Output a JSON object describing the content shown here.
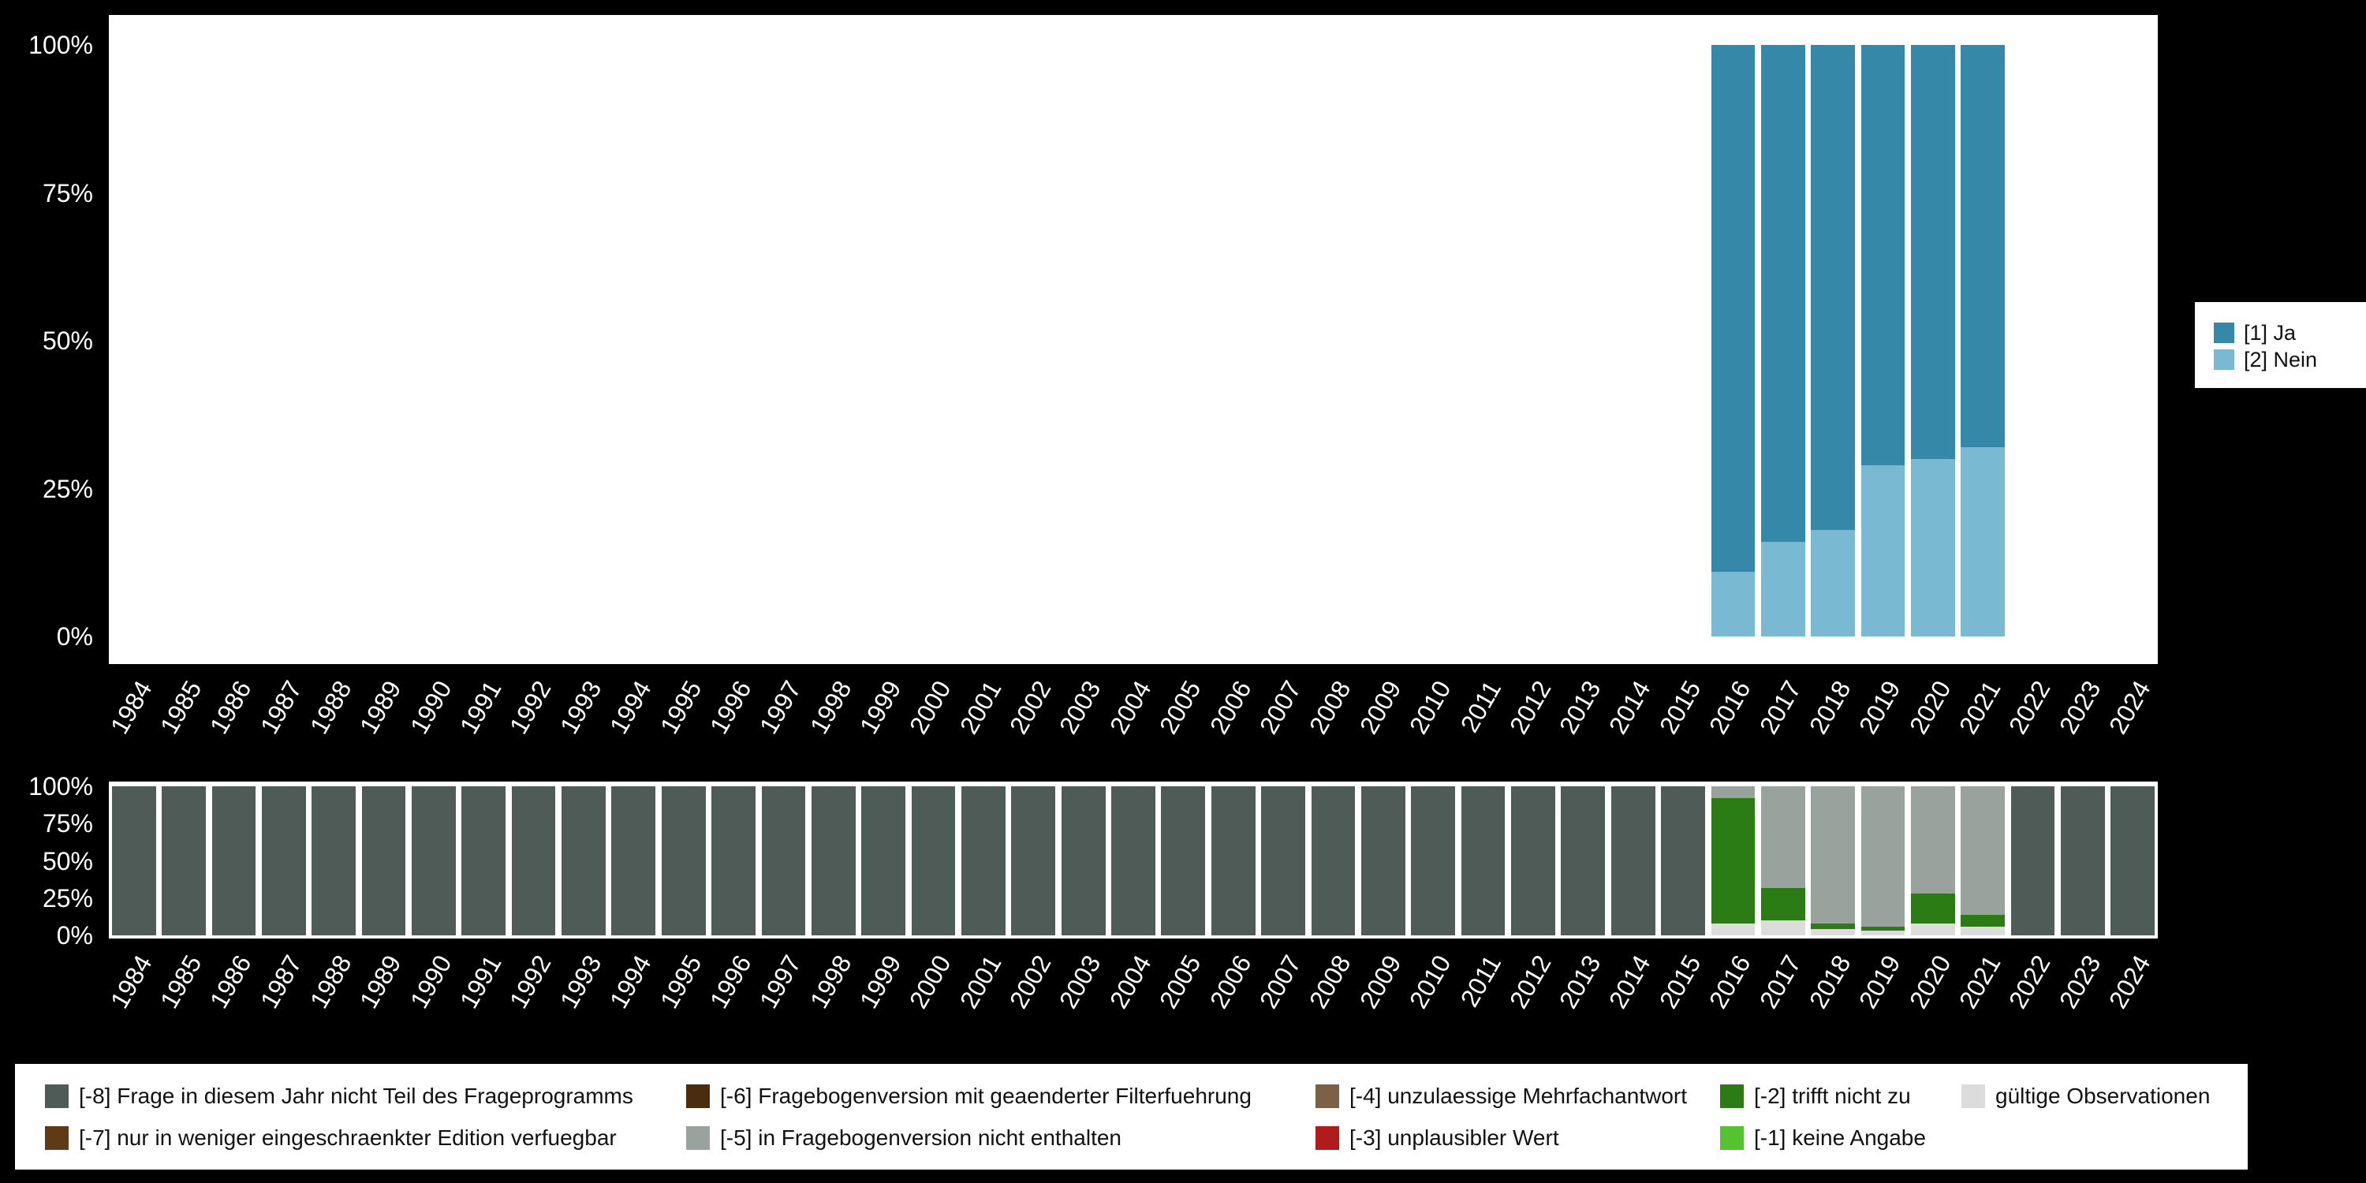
{
  "colors": {
    "background": "#000000",
    "panel": "#ffffff",
    "axis_text": "#ffffff",
    "legend_text": "#111111",
    "ja": "#3688a9",
    "nein": "#79b9d1",
    "neg8": "#4e5b57",
    "neg7": "#5e3a17",
    "neg6": "#4a2d0e",
    "neg5": "#99a29d",
    "neg4": "#7c6147",
    "neg3": "#b01c1c",
    "neg2": "#2c7c16",
    "neg1": "#54c32f",
    "valid": "#dcdcdc"
  },
  "top_legend": {
    "items": [
      {
        "label": "[1] Ja",
        "color": "#3688a9"
      },
      {
        "label": "[2] Nein",
        "color": "#79b9d1"
      }
    ]
  },
  "bottom_legend": {
    "items": [
      {
        "label": "[-8] Frage in diesem Jahr nicht Teil des Frageprogramms",
        "color": "#4e5b57"
      },
      {
        "label": "[-6] Fragebogenversion mit geaenderter Filterfuehrung",
        "color": "#4a2d0e"
      },
      {
        "label": "[-4] unzulaessige Mehrfachantwort",
        "color": "#7c6147"
      },
      {
        "label": "[-2] trifft nicht zu",
        "color": "#2c7c16"
      },
      {
        "label": "gültige Observationen",
        "color": "#dcdcdc"
      },
      {
        "label": "[-7] nur in weniger eingeschraenkter Edition verfuegbar",
        "color": "#5e3a17"
      },
      {
        "label": "[-5] in Fragebogenversion nicht enthalten",
        "color": "#99a29d"
      },
      {
        "label": "[-3] unplausibler Wert",
        "color": "#b01c1c"
      },
      {
        "label": "[-1] keine Angabe",
        "color": "#54c32f"
      }
    ]
  },
  "chart_data": [
    {
      "id": "answer-distribution",
      "type": "bar",
      "stacked": true,
      "orientation": "vertical",
      "categories": [
        "1984",
        "1985",
        "1986",
        "1987",
        "1988",
        "1989",
        "1990",
        "1991",
        "1992",
        "1993",
        "1994",
        "1995",
        "1996",
        "1997",
        "1998",
        "1999",
        "2000",
        "2001",
        "2002",
        "2003",
        "2004",
        "2005",
        "2006",
        "2007",
        "2008",
        "2009",
        "2010",
        "2011",
        "2012",
        "2013",
        "2014",
        "2015",
        "2016",
        "2017",
        "2018",
        "2019",
        "2020",
        "2021",
        "2022",
        "2023",
        "2024"
      ],
      "ylim": [
        0,
        100
      ],
      "yticks": [
        0,
        25,
        50,
        75,
        100
      ],
      "ytick_labels": [
        "0%",
        "25%",
        "50%",
        "75%",
        "100%"
      ],
      "legend_position": "right",
      "legend_labels": [
        "[1] Ja",
        "[2] Nein"
      ],
      "series": [
        {
          "name": "[2] Nein",
          "color": "#79b9d1",
          "values_by_year": {
            "2016": 11,
            "2017": 16,
            "2018": 18,
            "2019": 29,
            "2020": 30,
            "2021": 32
          }
        },
        {
          "name": "[1] Ja",
          "color": "#3688a9",
          "values_by_year": {
            "2016": 89,
            "2017": 84,
            "2018": 82,
            "2019": 71,
            "2020": 70,
            "2021": 68
          }
        }
      ]
    },
    {
      "id": "missing-values-distribution",
      "type": "bar",
      "stacked": true,
      "orientation": "vertical",
      "categories": [
        "1984",
        "1985",
        "1986",
        "1987",
        "1988",
        "1989",
        "1990",
        "1991",
        "1992",
        "1993",
        "1994",
        "1995",
        "1996",
        "1997",
        "1998",
        "1999",
        "2000",
        "2001",
        "2002",
        "2003",
        "2004",
        "2005",
        "2006",
        "2007",
        "2008",
        "2009",
        "2010",
        "2011",
        "2012",
        "2013",
        "2014",
        "2015",
        "2016",
        "2017",
        "2018",
        "2019",
        "2020",
        "2021",
        "2022",
        "2023",
        "2024"
      ],
      "ylim": [
        0,
        100
      ],
      "yticks": [
        0,
        25,
        50,
        75,
        100
      ],
      "ytick_labels": [
        "0%",
        "25%",
        "50%",
        "75%",
        "100%"
      ],
      "legend_position": "bottom",
      "series": [
        {
          "name": "gültige Observationen",
          "color": "#dcdcdc",
          "values_by_year": {
            "2016": 8,
            "2017": 10,
            "2018": 4,
            "2019": 3,
            "2020": 8,
            "2021": 6
          }
        },
        {
          "name": "[-2] trifft nicht zu",
          "color": "#2c7c16",
          "values_by_year": {
            "2016": 84,
            "2017": 22,
            "2018": 4,
            "2019": 3,
            "2020": 20,
            "2021": 8
          }
        },
        {
          "name": "[-5] in Fragebogenversion nicht enthalten",
          "color": "#99a29d",
          "values_by_year": {
            "2016": 8,
            "2017": 68,
            "2018": 92,
            "2019": 94,
            "2020": 72,
            "2021": 86
          }
        },
        {
          "name": "[-8] Frage in diesem Jahr nicht Teil des Frageprogramms",
          "color": "#4e5b57",
          "values_by_year": {
            "1984": 100,
            "1985": 100,
            "1986": 100,
            "1987": 100,
            "1988": 100,
            "1989": 100,
            "1990": 100,
            "1991": 100,
            "1992": 100,
            "1993": 100,
            "1994": 100,
            "1995": 100,
            "1996": 100,
            "1997": 100,
            "1998": 100,
            "1999": 100,
            "2000": 100,
            "2001": 100,
            "2002": 100,
            "2003": 100,
            "2004": 100,
            "2005": 100,
            "2006": 100,
            "2007": 100,
            "2008": 100,
            "2009": 100,
            "2010": 100,
            "2011": 100,
            "2012": 100,
            "2013": 100,
            "2014": 100,
            "2015": 100,
            "2022": 100,
            "2023": 100,
            "2024": 100
          }
        }
      ]
    }
  ]
}
